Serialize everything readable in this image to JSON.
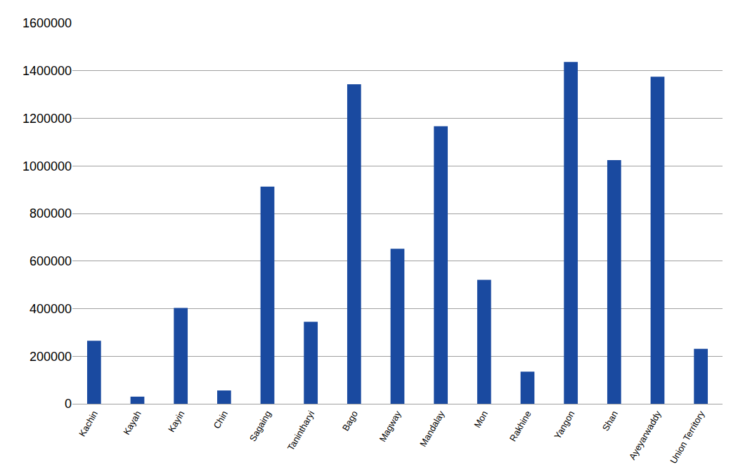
{
  "chart_data": {
    "type": "bar",
    "categories": [
      "Kachin",
      "Kayah",
      "Kayin",
      "Chin",
      "Sagaing",
      "Tanintharyi",
      "Bago",
      "Magway",
      "Mandalay",
      "Mon",
      "Rakhine",
      "Yangon",
      "Shan",
      "Ayeyarwaddy",
      "Union Territory"
    ],
    "values": [
      265000,
      30000,
      403000,
      56000,
      913000,
      345000,
      1343000,
      652000,
      1167000,
      521000,
      135000,
      1437000,
      1024000,
      1375000,
      231000
    ],
    "color": "#1a4aa0",
    "ylim": [
      0,
      1600000
    ],
    "yticks": [
      0,
      200000,
      400000,
      600000,
      800000,
      1000000,
      1200000,
      1400000,
      1600000
    ],
    "grid": true
  }
}
